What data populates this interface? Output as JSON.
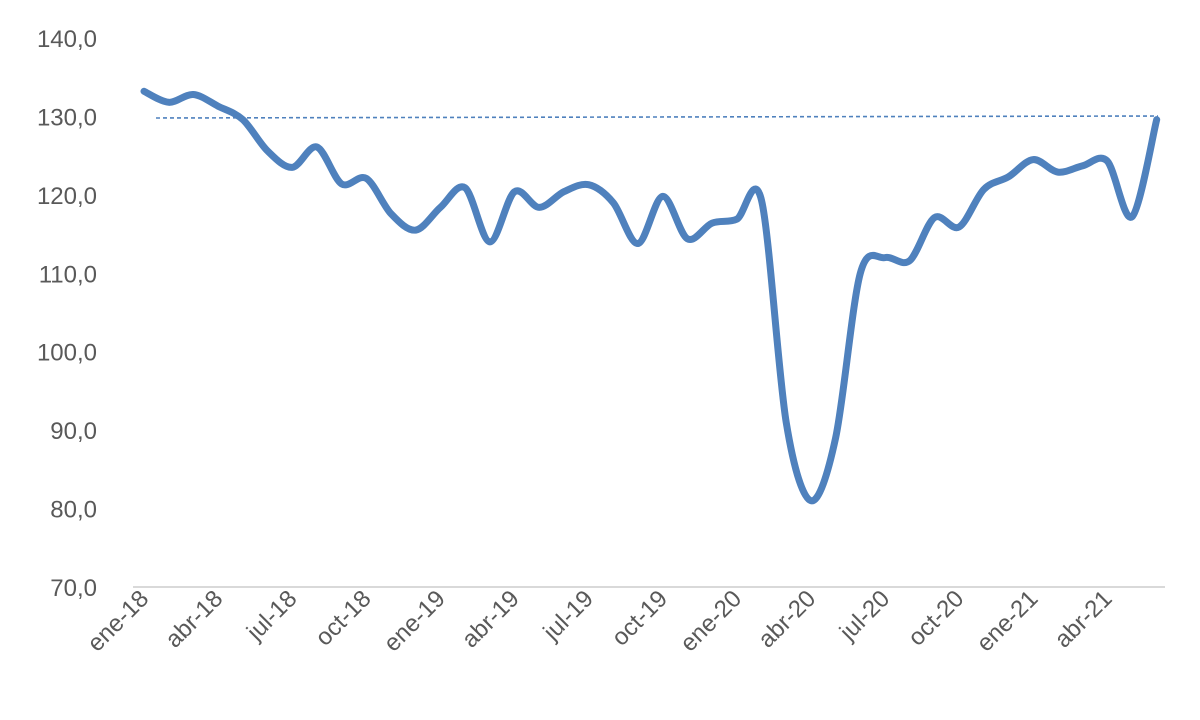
{
  "chart_data": {
    "type": "line",
    "title": "",
    "xlabel": "",
    "ylabel": "",
    "ylim": [
      70,
      140
    ],
    "yticks": [
      "70,0",
      "80,0",
      "90,0",
      "100,0",
      "110,0",
      "120,0",
      "130,0",
      "140,0"
    ],
    "xticks": [
      "ene-18",
      "abr-18",
      "jul-18",
      "oct-18",
      "ene-19",
      "abr-19",
      "jul-19",
      "oct-19",
      "ene-20",
      "abr-20",
      "jul-20",
      "oct-20",
      "ene-21",
      "abr-21"
    ],
    "grid": false,
    "legend": "none",
    "colors": {
      "series": "#4f81bd",
      "reference": "#4f81bd",
      "axis": "#d9d9d9",
      "text": "#595959"
    },
    "series": [
      {
        "values": [
          133.2,
          131.8,
          132.8,
          131.3,
          129.6,
          125.6,
          123.5,
          126.1,
          121.4,
          122.1,
          117.6,
          115.5,
          118.4,
          120.9,
          114.0,
          120.4,
          118.4,
          120.4,
          121.3,
          119.0,
          113.8,
          119.8,
          114.4,
          116.4,
          116.9,
          119.3,
          91.0,
          81.0,
          89.0,
          110.0,
          112.0,
          111.6,
          117.1,
          115.9,
          120.7,
          122.3,
          124.5,
          122.9,
          123.7,
          124.3,
          117.2,
          129.6
        ]
      }
    ],
    "reference_line": {
      "value": 129.8,
      "style": "dashed"
    }
  }
}
